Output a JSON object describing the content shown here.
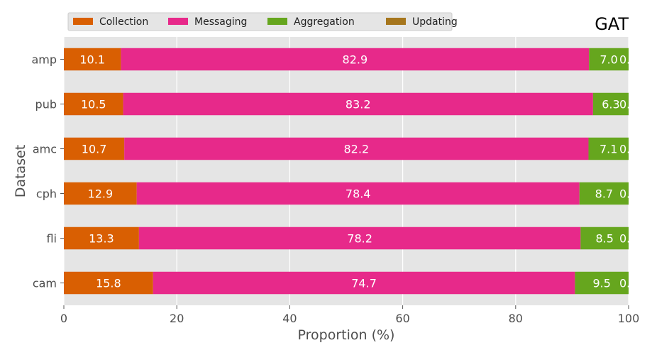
{
  "chart_data": {
    "type": "bar",
    "orientation": "horizontal",
    "stacked": true,
    "title": "GAT",
    "xlabel": "Proportion (%)",
    "ylabel": "Dataset",
    "xlim": [
      0,
      100
    ],
    "xticks": [
      0,
      20,
      40,
      60,
      80,
      100
    ],
    "grid": true,
    "legend_position": "top-left",
    "categories": [
      "amp",
      "pub",
      "amc",
      "cph",
      "fli",
      "cam"
    ],
    "series": [
      {
        "name": "Collection",
        "color": "#d95f02",
        "values": [
          10.1,
          10.5,
          10.7,
          12.9,
          13.3,
          15.8
        ]
      },
      {
        "name": "Messaging",
        "color": "#e7298a",
        "values": [
          82.9,
          83.2,
          82.2,
          78.4,
          78.2,
          74.7
        ]
      },
      {
        "name": "Aggregation",
        "color": "#66a61e",
        "values": [
          7.0,
          6.3,
          7.1,
          8.7,
          8.5,
          9.5
        ]
      },
      {
        "name": "Updating",
        "color": "#a6761d",
        "values": [
          0.0,
          0.0,
          0.0,
          0.0,
          0.0,
          0.0
        ]
      }
    ],
    "data_labels": [
      [
        "10.1",
        "82.9",
        "7.0",
        "0."
      ],
      [
        "10.5",
        "83.2",
        "6.3",
        "0."
      ],
      [
        "10.7",
        "82.2",
        "7.1",
        "0."
      ],
      [
        "12.9",
        "78.4",
        "8.7",
        "0."
      ],
      [
        "13.3",
        "78.2",
        "8.5",
        "0."
      ],
      [
        "15.8",
        "74.7",
        "9.5",
        "0."
      ]
    ]
  }
}
